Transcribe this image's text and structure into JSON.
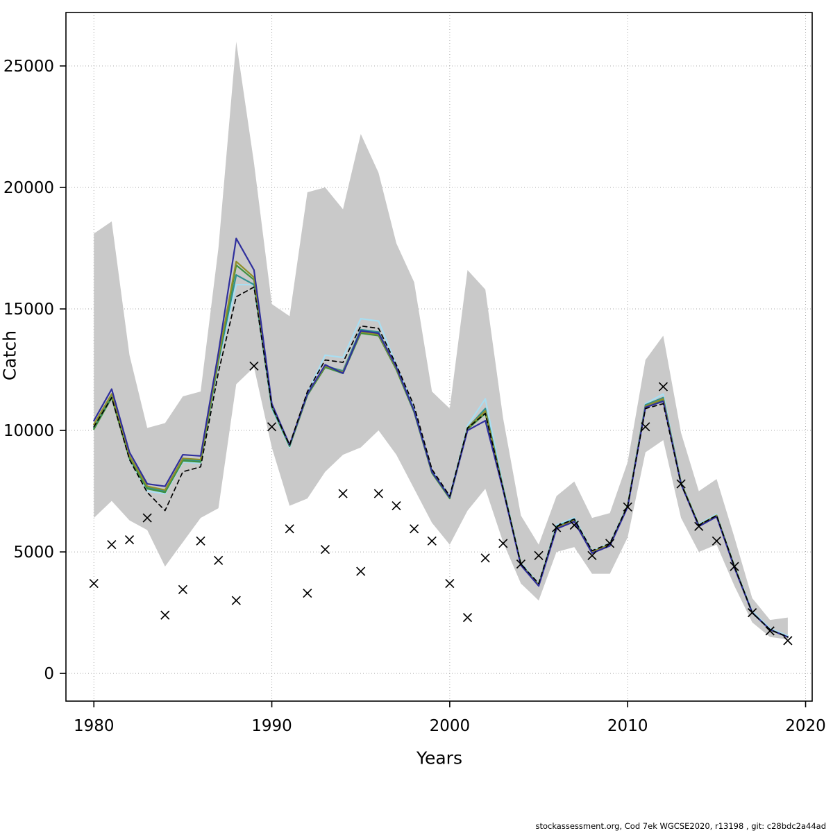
{
  "page": {
    "background": "#ffffff"
  },
  "footer": {
    "credit": "stockassessment.org, Cod 7ek WGCSE2020, r13198 , git: c28bdc2a44ad"
  },
  "chart_data": {
    "type": "line",
    "title": "",
    "xlabel": "Years",
    "ylabel": "Catch",
    "x_ticks": [
      1980,
      1990,
      2000,
      2010,
      2020
    ],
    "y_ticks": [
      0,
      5000,
      10000,
      15000,
      20000,
      25000
    ],
    "xlim": [
      1978.43,
      2020.37
    ],
    "ylim": [
      -1140,
      27200
    ],
    "grid": "dotted",
    "legend": "none",
    "years": [
      1980,
      1981,
      1982,
      1983,
      1984,
      1985,
      1986,
      1987,
      1988,
      1989,
      1990,
      1991,
      1992,
      1993,
      1994,
      1995,
      1996,
      1997,
      1998,
      1999,
      2000,
      2001,
      2002,
      2003,
      2004,
      2005,
      2006,
      2007,
      2008,
      2009,
      2010,
      2011,
      2012,
      2013,
      2014,
      2015,
      2016,
      2017,
      2018,
      2019
    ],
    "band": {
      "name": "confidence-band",
      "color": "#c9c9c9",
      "upper": [
        18100,
        18600,
        13100,
        10100,
        10300,
        11400,
        11600,
        17500,
        26000,
        21000,
        15200,
        14700,
        19800,
        20000,
        19100,
        22200,
        20600,
        17700,
        16100,
        11600,
        10900,
        16600,
        15800,
        10500,
        6500,
        5300,
        7300,
        7900,
        6400,
        6600,
        8700,
        12900,
        13900,
        9900,
        7500,
        8000,
        5600,
        3100,
        2200,
        2300
      ],
      "lower": [
        6400,
        7100,
        6300,
        5900,
        4400,
        5400,
        6400,
        6800,
        11900,
        12600,
        9300,
        6900,
        7200,
        8300,
        9000,
        9300,
        10000,
        9000,
        7600,
        6200,
        5300,
        6700,
        7600,
        5400,
        3700,
        3000,
        5000,
        5200,
        4100,
        4100,
        5600,
        9100,
        9600,
        6400,
        5000,
        5300,
        3600,
        2100,
        1500,
        1400
      ]
    },
    "series": [
      {
        "name": "run-lightblue",
        "color": "#a8def2",
        "dash": "none",
        "width": 2.2,
        "values": [
          10200,
          11450,
          8800,
          7500,
          7400,
          8700,
          8650,
          12800,
          16000,
          16000,
          10900,
          9300,
          11550,
          13100,
          13000,
          14600,
          14500,
          12700,
          10900,
          8350,
          7300,
          10200,
          11300,
          7700,
          4550,
          3700,
          6100,
          6400,
          5050,
          5350,
          6950,
          11100,
          11500,
          7900,
          6150,
          6550,
          4450,
          2550,
          1850,
          1550
        ]
      },
      {
        "name": "run-teal",
        "color": "#2f9090",
        "dash": "none",
        "width": 2.2,
        "values": [
          10100,
          11400,
          8900,
          7650,
          7500,
          8800,
          8750,
          12850,
          16400,
          16000,
          10950,
          9350,
          11450,
          12650,
          12450,
          14150,
          14050,
          12550,
          10800,
          8300,
          7250,
          10100,
          10900,
          7650,
          4500,
          3650,
          6050,
          6350,
          5000,
          5300,
          6900,
          11050,
          11350,
          7850,
          6100,
          6500,
          4400,
          2500,
          1800,
          1500
        ]
      },
      {
        "name": "run-green",
        "color": "#3f9140",
        "dash": "none",
        "width": 2.2,
        "values": [
          10050,
          11350,
          8850,
          7600,
          7450,
          8750,
          8700,
          12900,
          16800,
          16200,
          11000,
          9350,
          11450,
          12600,
          12350,
          14000,
          13900,
          12500,
          10750,
          8250,
          7200,
          10050,
          10700,
          7600,
          4500,
          3650,
          6000,
          6300,
          5000,
          5300,
          6900,
          11000,
          11250,
          7800,
          6100,
          6500,
          4400,
          2500,
          1800,
          1500
        ]
      },
      {
        "name": "run-olive",
        "color": "#8f8f2a",
        "dash": "none",
        "width": 2.2,
        "values": [
          10250,
          11500,
          8950,
          7700,
          7550,
          8850,
          8800,
          13000,
          16950,
          16300,
          11050,
          9400,
          11500,
          12650,
          12400,
          14050,
          13950,
          12550,
          10800,
          8300,
          7250,
          10100,
          10800,
          7600,
          4500,
          3650,
          6000,
          6300,
          5000,
          5300,
          6900,
          11000,
          11300,
          7850,
          6100,
          6500,
          4400,
          2500,
          1800,
          1500
        ]
      },
      {
        "name": "run-darkblue",
        "color": "#2f2f9d",
        "dash": "none",
        "width": 2.2,
        "values": [
          10400,
          11700,
          9100,
          7800,
          7700,
          9000,
          8950,
          13200,
          17900,
          16600,
          11100,
          9400,
          11500,
          12700,
          12350,
          14100,
          14000,
          12600,
          10800,
          8300,
          7250,
          10000,
          10400,
          7550,
          4450,
          3600,
          5950,
          6250,
          4950,
          5250,
          6850,
          10950,
          11200,
          7800,
          6050,
          6450,
          4350,
          2500,
          1800,
          1500
        ]
      },
      {
        "name": "base-fit-dashed",
        "color": "#000000",
        "dash": "6 5",
        "width": 1.7,
        "values": [
          10150,
          11350,
          8800,
          7450,
          6700,
          8300,
          8500,
          12400,
          15500,
          15900,
          11000,
          9400,
          11600,
          12900,
          12800,
          14300,
          14200,
          12700,
          11000,
          8400,
          7300,
          10100,
          10700,
          7600,
          4500,
          3700,
          6050,
          6350,
          5050,
          5350,
          6900,
          10900,
          11100,
          7800,
          6100,
          6500,
          4400,
          2500,
          1800,
          1500
        ]
      }
    ],
    "observed": {
      "name": "observed-catch",
      "marker": "x",
      "color": "#000000",
      "values": [
        3700,
        5300,
        5500,
        6400,
        2400,
        3450,
        5450,
        4650,
        3000,
        12650,
        10150,
        5950,
        3300,
        5100,
        7400,
        4200,
        7400,
        6900,
        5950,
        5450,
        3700,
        2300,
        4750,
        5350,
        4500,
        4850,
        6000,
        6100,
        4850,
        5350,
        6850,
        10150,
        11800,
        7800,
        6050,
        5450,
        4400,
        2500,
        1750,
        1350
      ]
    }
  }
}
